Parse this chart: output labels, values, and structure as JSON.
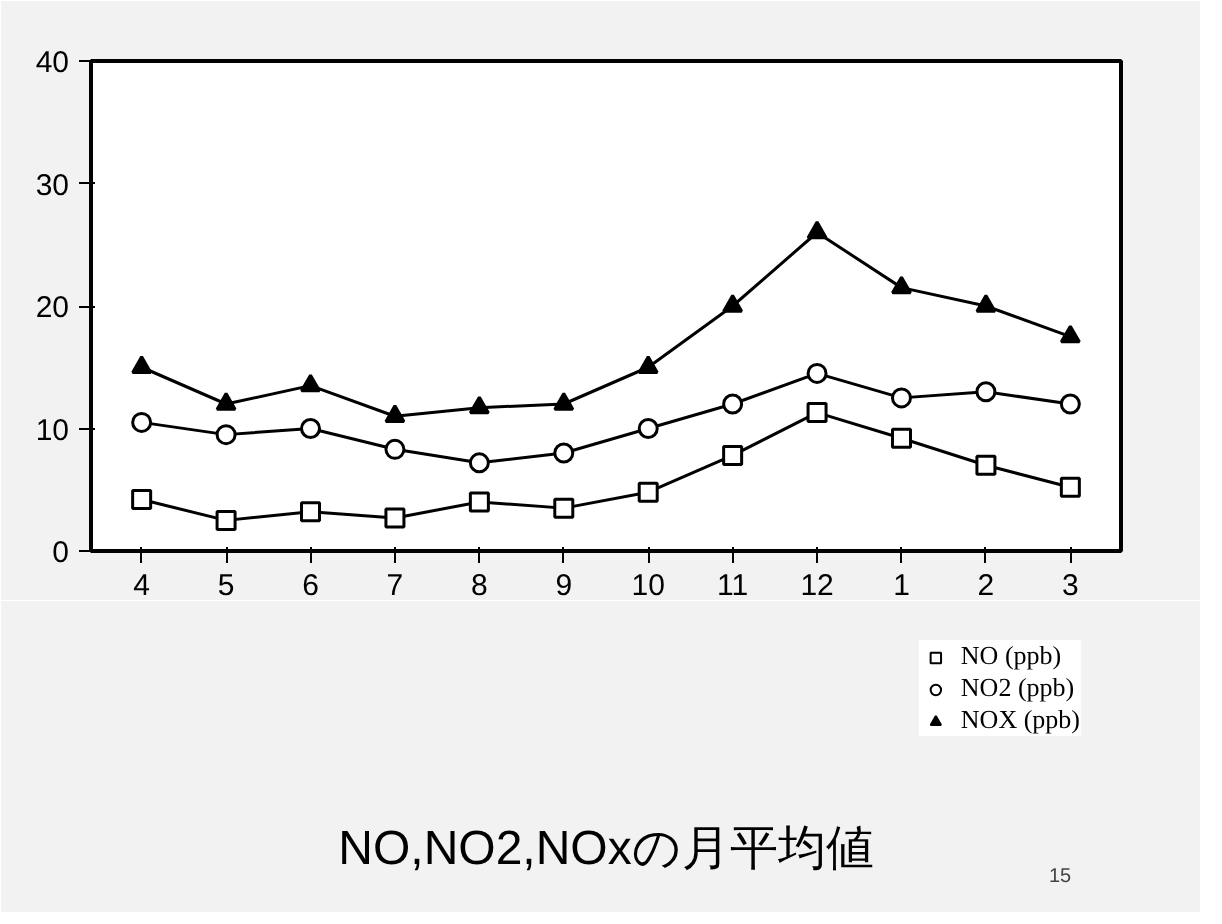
{
  "chart_data": {
    "type": "line",
    "title": "NO,NO2,NOxの月平均値",
    "categories": [
      "4",
      "5",
      "6",
      "7",
      "8",
      "9",
      "10",
      "11",
      "12",
      "1",
      "2",
      "3"
    ],
    "series": [
      {
        "name": "NO (ppb)",
        "color": "#000000",
        "marker": "square",
        "values": [
          4.2,
          2.5,
          3.2,
          2.7,
          4.0,
          3.5,
          4.8,
          7.8,
          11.3,
          9.2,
          7.0,
          5.2
        ]
      },
      {
        "name": "NO2 (ppb)",
        "color": "#000000",
        "marker": "circle",
        "values": [
          10.5,
          9.5,
          10.0,
          8.3,
          7.2,
          8.0,
          10.0,
          12.0,
          14.5,
          12.5,
          13.0,
          12.0
        ]
      },
      {
        "name": "NOX (ppb)",
        "color": "#000000",
        "marker": "triangle",
        "values": [
          15.0,
          12.0,
          13.5,
          11.0,
          11.7,
          12.0,
          15.0,
          20.0,
          26.0,
          21.5,
          20.0,
          17.5
        ]
      }
    ],
    "ylim": [
      0,
      40
    ],
    "yticks": [
      0,
      10,
      20,
      30,
      40
    ],
    "grid": false,
    "legend": "bottom right",
    "line_style": "solid",
    "annotations": [
      "15"
    ]
  }
}
